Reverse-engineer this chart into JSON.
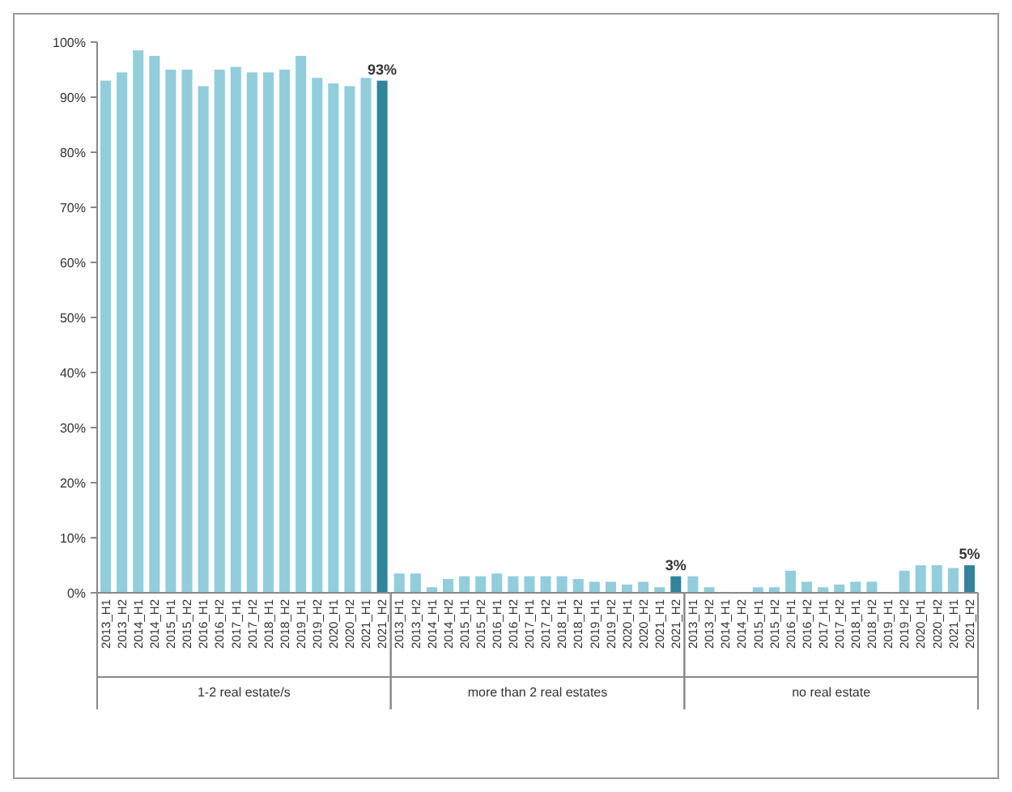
{
  "chart_data": [
    {
      "type": "bar",
      "xlabel": "1-2 real estate/s",
      "categories": [
        "2013_H1",
        "2013_H2",
        "2014_H1",
        "2014_H2",
        "2015_H1",
        "2015_H2",
        "2016_H1",
        "2016_H2",
        "2017_H1",
        "2017_H2",
        "2018_H1",
        "2018_H2",
        "2019_H1",
        "2019_H2",
        "2020_H1",
        "2020_H2",
        "2021_H1",
        "2021_H2"
      ],
      "values": [
        93,
        94.5,
        98.5,
        97.5,
        95,
        95,
        92,
        95,
        95.5,
        94.5,
        94.5,
        95,
        97.5,
        93.5,
        92.5,
        92,
        93.5,
        93
      ],
      "colors": [
        "#92cddc",
        "#92cddc",
        "#92cddc",
        "#92cddc",
        "#92cddc",
        "#92cddc",
        "#92cddc",
        "#92cddc",
        "#92cddc",
        "#92cddc",
        "#92cddc",
        "#92cddc",
        "#92cddc",
        "#92cddc",
        "#92cddc",
        "#92cddc",
        "#92cddc",
        "#31849b"
      ],
      "value_labels": [
        null,
        null,
        null,
        null,
        null,
        null,
        null,
        null,
        null,
        null,
        null,
        null,
        null,
        null,
        null,
        null,
        null,
        "93%"
      ],
      "ylim": [
        0,
        100
      ],
      "yticks": [
        {
          "value": 0,
          "label": "0%"
        },
        {
          "value": 10,
          "label": "10%"
        },
        {
          "value": 20,
          "label": "20%"
        },
        {
          "value": 30,
          "label": "30%"
        },
        {
          "value": 40,
          "label": "40%"
        },
        {
          "value": 50,
          "label": "50%"
        },
        {
          "value": 60,
          "label": "60%"
        },
        {
          "value": 70,
          "label": "70%"
        },
        {
          "value": 80,
          "label": "80%"
        },
        {
          "value": 90,
          "label": "90%"
        },
        {
          "value": 100,
          "label": "100%"
        }
      ],
      "grid": false
    },
    {
      "type": "bar",
      "xlabel": "more than 2 real estates",
      "categories": [
        "2013_H1",
        "2013_H2",
        "2014_H1",
        "2014_H2",
        "2015_H1",
        "2015_H2",
        "2016_H1",
        "2016_H2",
        "2017_H1",
        "2017_H2",
        "2018_H1",
        "2018_H2",
        "2019_H1",
        "2019_H2",
        "2020_H1",
        "2020_H2",
        "2021_H1",
        "2021_H2"
      ],
      "values": [
        3.5,
        3.5,
        1,
        2.5,
        3,
        3,
        3.5,
        3,
        3,
        3,
        3,
        2.5,
        2,
        2,
        1.5,
        2,
        1,
        3
      ],
      "colors": [
        "#92cddc",
        "#92cddc",
        "#92cddc",
        "#92cddc",
        "#92cddc",
        "#92cddc",
        "#92cddc",
        "#92cddc",
        "#92cddc",
        "#92cddc",
        "#92cddc",
        "#92cddc",
        "#92cddc",
        "#92cddc",
        "#92cddc",
        "#92cddc",
        "#92cddc",
        "#31849b"
      ],
      "value_labels": [
        null,
        null,
        null,
        null,
        null,
        null,
        null,
        null,
        null,
        null,
        null,
        null,
        null,
        null,
        null,
        null,
        null,
        "3%"
      ],
      "ylim": [
        0,
        100
      ],
      "tick_labels": "x",
      "grid": false
    },
    {
      "type": "bar",
      "xlabel": "no real estate",
      "categories": [
        "2013_H1",
        "2013_H2",
        "2014_H1",
        "2014_H2",
        "2015_H1",
        "2015_H2",
        "2016_H1",
        "2016_H2",
        "2017_H1",
        "2017_H2",
        "2018_H1",
        "2018_H2",
        "2019_H1",
        "2019_H2",
        "2020_H1",
        "2020_H2",
        "2021_H1",
        "2021_H2"
      ],
      "values": [
        3,
        1,
        0,
        0,
        1,
        1,
        4,
        2,
        1,
        1.5,
        2,
        2,
        0,
        4,
        5,
        5,
        4.5,
        5
      ],
      "colors": [
        "#92cddc",
        "#92cddc",
        "#92cddc",
        "#92cddc",
        "#92cddc",
        "#92cddc",
        "#92cddc",
        "#92cddc",
        "#92cddc",
        "#92cddc",
        "#92cddc",
        "#92cddc",
        "#92cddc",
        "#92cddc",
        "#92cddc",
        "#92cddc",
        "#92cddc",
        "#31849b"
      ],
      "value_labels": [
        null,
        null,
        null,
        null,
        null,
        null,
        null,
        null,
        null,
        null,
        null,
        null,
        null,
        null,
        null,
        null,
        null,
        "5%"
      ],
      "ylim": [
        0,
        100
      ],
      "tick_labels": "x",
      "grid": false
    }
  ]
}
